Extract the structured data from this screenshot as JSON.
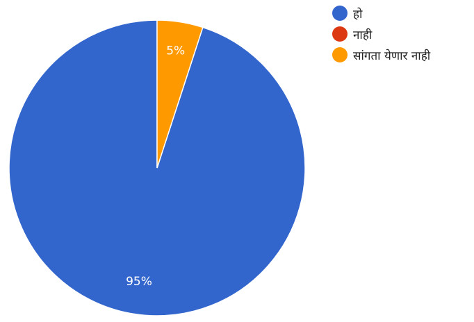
{
  "chart_data": {
    "type": "pie",
    "categories": [
      "हो",
      "नाही",
      "सांगता येणार नाही"
    ],
    "values": [
      95,
      0,
      5
    ],
    "labels": [
      "95%",
      "",
      "5%"
    ],
    "colors": [
      "#3366cc",
      "#dc3912",
      "#ff9900"
    ],
    "legend_position": "right",
    "start_angle_deg": 90,
    "direction": "counterclockwise"
  }
}
